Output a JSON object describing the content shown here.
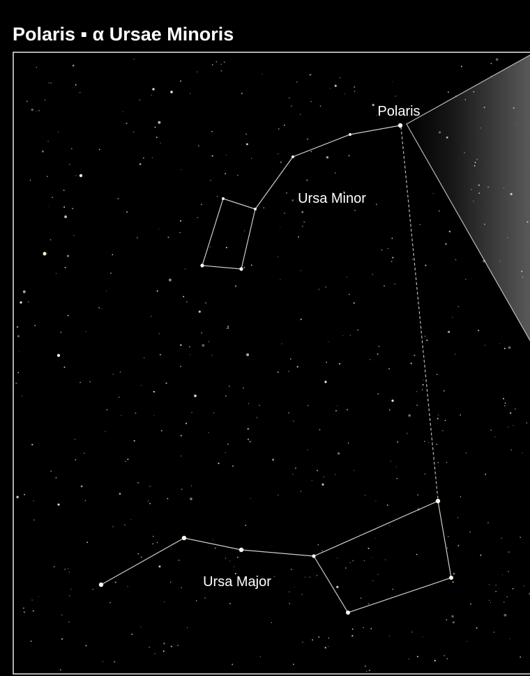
{
  "header": {
    "title": "Polaris ▪ α Ursae Minoris"
  },
  "labels": [
    "Polaris",
    "Ursa Minor",
    "Ursa Major"
  ]
}
